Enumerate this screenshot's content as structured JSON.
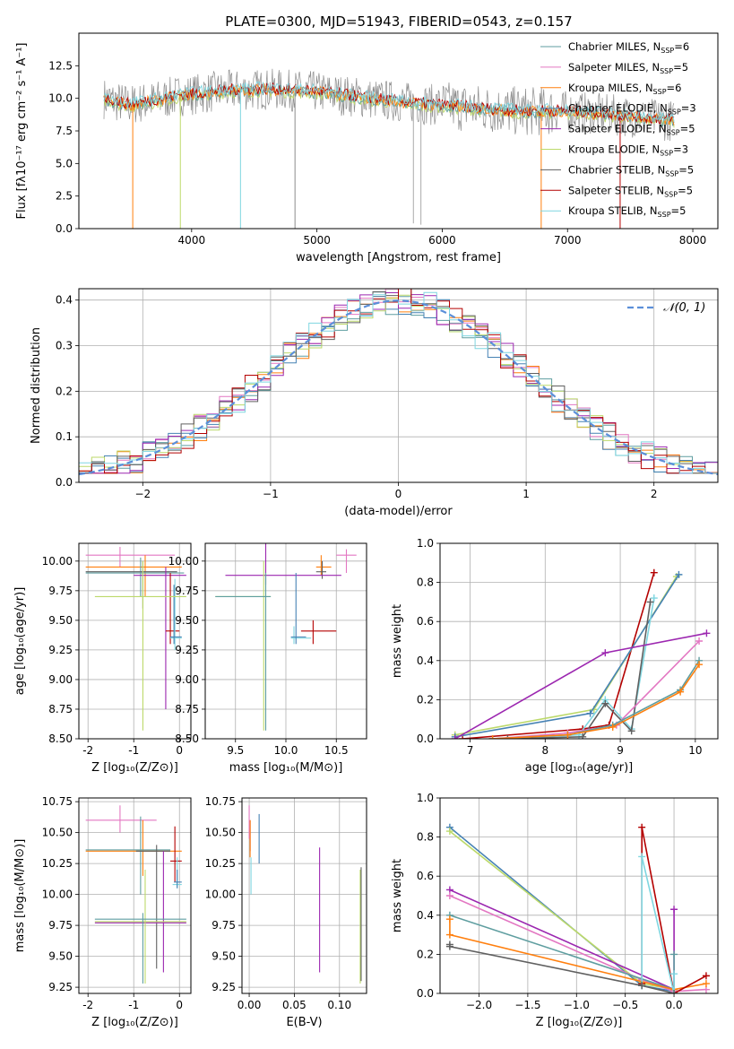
{
  "figure_title": "PLATE=0300, MJD=51943, FIBERID=0543, z=0.157",
  "colors": {
    "chabrier_miles": "#5f9ea0",
    "salpeter_miles": "#e377c2",
    "kroupa_miles": "#ff7f0e",
    "chabrier_elodie": "#4682b4",
    "salpeter_elodie": "#9c27b0",
    "kroupa_elodie": "#bcd96a",
    "chabrier_stelib": "#606060",
    "salpeter_stelib": "#b40000",
    "kroupa_stelib": "#7fd6e0",
    "gauss": "#5b8fd9",
    "grid": "#b0b0b0"
  },
  "chart_data": [
    {
      "id": "spectrum",
      "type": "line",
      "xlabel": "wavelength [Angstrom, rest frame]",
      "ylabel": "Flux [fλ10⁻¹⁷ erg cm⁻² s⁻¹ A⁻¹]",
      "xlim": [
        3100,
        8200
      ],
      "ylim": [
        0,
        15
      ],
      "xticks": [
        4000,
        5000,
        6000,
        7000,
        8000
      ],
      "yticks": [
        0.0,
        2.5,
        5.0,
        7.5,
        10.0,
        12.5
      ],
      "legend_position": "top-right",
      "legend": [
        {
          "base": "Chabrier MILES, N",
          "sub": "SSP",
          "tail": "=6",
          "color_key": "chabrier_miles"
        },
        {
          "base": "Salpeter MILES, N",
          "sub": "SSP",
          "tail": "=5",
          "color_key": "salpeter_miles"
        },
        {
          "base": "Kroupa MILES, N",
          "sub": "SSP",
          "tail": "=6",
          "color_key": "kroupa_miles"
        },
        {
          "base": "Chabrier ELODIE, N",
          "sub": "SSP",
          "tail": "=3",
          "color_key": "chabrier_elodie"
        },
        {
          "base": "Salpeter ELODIE, N",
          "sub": "SSP",
          "tail": "=5",
          "color_key": "salpeter_elodie"
        },
        {
          "base": "Kroupa ELODIE, N",
          "sub": "SSP",
          "tail": "=3",
          "color_key": "kroupa_elodie"
        },
        {
          "base": "Chabrier STELIB, N",
          "sub": "SSP",
          "tail": "=5",
          "color_key": "chabrier_stelib"
        },
        {
          "base": "Salpeter STELIB, N",
          "sub": "SSP",
          "tail": "=5",
          "color_key": "salpeter_stelib"
        },
        {
          "base": "Kroupa STELIB, N",
          "sub": "SSP",
          "tail": "=5",
          "color_key": "kroupa_stelib"
        }
      ],
      "continuum": [
        [
          3300,
          10.0
        ],
        [
          3500,
          9.5
        ],
        [
          3700,
          9.8
        ],
        [
          3900,
          10.2
        ],
        [
          4100,
          10.4
        ],
        [
          4300,
          10.6
        ],
        [
          4600,
          10.7
        ],
        [
          5000,
          10.5
        ],
        [
          5400,
          10.0
        ],
        [
          5800,
          9.6
        ],
        [
          6200,
          9.3
        ],
        [
          6600,
          9.0
        ],
        [
          7000,
          9.0
        ],
        [
          7400,
          8.7
        ],
        [
          7800,
          8.3
        ]
      ],
      "dips": [
        {
          "x": 3530,
          "y": 0.0
        },
        {
          "x": 3910,
          "y": 0.0
        },
        {
          "x": 4390,
          "y": 0.0
        },
        {
          "x": 4825,
          "y": 0.0
        },
        {
          "x": 5770,
          "y": 0.4
        },
        {
          "x": 5830,
          "y": 0.3
        },
        {
          "x": 6790,
          "y": 0.0
        },
        {
          "x": 7420,
          "y": 0.0
        }
      ]
    },
    {
      "id": "residuals",
      "type": "line",
      "xlabel": "(data-model)/error",
      "ylabel": "Normed distribution",
      "xlim": [
        -2.5,
        2.5
      ],
      "ylim": [
        0,
        0.425
      ],
      "xticks": [
        -2,
        -1,
        0,
        1,
        2
      ],
      "yticks": [
        0.0,
        0.1,
        0.2,
        0.3,
        0.4
      ],
      "gauss_label": "𝒩(0, 1)",
      "legend_position": "top-right"
    },
    {
      "id": "age_vs_Z",
      "type": "scatter",
      "xlabel": "Z [log₁₀(Z/Z⊙)]",
      "ylabel": "age  [log₁₀(age/yr)]",
      "xlim": [
        -2.2,
        0.25
      ],
      "ylim": [
        8.5,
        10.15
      ],
      "xticks": [
        -2,
        -1,
        0
      ],
      "yticks": [
        8.5,
        8.75,
        9.0,
        9.25,
        9.5,
        9.75,
        10.0
      ],
      "points": [
        {
          "c": "salpeter_miles",
          "x": -1.3,
          "y": 10.05,
          "xl": -2.05,
          "xh": -0.1,
          "yl": 9.95,
          "yh": 10.12
        },
        {
          "c": "kroupa_miles",
          "x": -0.75,
          "y": 9.95,
          "xl": -2.05,
          "xh": 0.05,
          "yl": 9.7,
          "yh": 10.05
        },
        {
          "c": "chabrier_miles",
          "x": -0.85,
          "y": 9.9,
          "xl": -2.05,
          "xh": 0.1,
          "yl": 9.7,
          "yh": 10.03
        },
        {
          "c": "chabrier_stelib",
          "x": -0.8,
          "y": 9.91,
          "xl": -2.05,
          "xh": -0.05,
          "yl": 9.6,
          "yh": 10.0
        },
        {
          "c": "salpeter_elodie",
          "x": -0.3,
          "y": 9.88,
          "xl": -1.0,
          "xh": 0.15,
          "yl": 8.75,
          "yh": 9.95
        },
        {
          "c": "salpeter_stelib",
          "x": -0.2,
          "y": 9.41,
          "xl": -0.3,
          "xh": 0.0,
          "yl": 9.3,
          "yh": 9.9
        },
        {
          "c": "kroupa_stelib",
          "x": -0.1,
          "y": 9.35,
          "xl": -0.2,
          "xh": 0.05,
          "yl": 9.25,
          "yh": 9.85
        },
        {
          "c": "chabrier_elodie",
          "x": -0.12,
          "y": 9.36,
          "xl": -0.2,
          "xh": 0.05,
          "yl": 9.3,
          "yh": 9.8
        },
        {
          "c": "kroupa_elodie",
          "x": -0.8,
          "y": 9.7,
          "xl": -1.85,
          "xh": 0.15,
          "yl": 8.57,
          "yh": 10.0
        }
      ]
    },
    {
      "id": "age_vs_mass",
      "type": "scatter",
      "xlabel": "mass [log₁₀(M/M⊙)]",
      "ylabel": "",
      "xlim": [
        9.2,
        10.8
      ],
      "ylim": [
        8.5,
        10.15
      ],
      "xticks": [
        9.5,
        10.0,
        10.5
      ],
      "yticks": [
        8.5,
        8.75,
        9.0,
        9.25,
        9.5,
        9.75,
        10.0
      ],
      "points": [
        {
          "c": "salpeter_miles",
          "x": 10.6,
          "y": 10.05,
          "xl": 10.5,
          "xh": 10.7,
          "yl": 9.9,
          "yh": 10.1
        },
        {
          "c": "kroupa_miles",
          "x": 10.35,
          "y": 9.95,
          "xl": 10.3,
          "xh": 10.45,
          "yl": 9.88,
          "yh": 10.05
        },
        {
          "c": "chabrier_stelib",
          "x": 10.36,
          "y": 9.91,
          "xl": 10.3,
          "xh": 10.4,
          "yl": 9.85,
          "yh": 10.0
        },
        {
          "c": "salpeter_elodie",
          "x": 9.8,
          "y": 9.88,
          "xl": 9.4,
          "xh": 10.55,
          "yl": 9.8,
          "yh": 10.15
        },
        {
          "c": "salpeter_stelib",
          "x": 10.27,
          "y": 9.41,
          "xl": 10.15,
          "xh": 10.5,
          "yl": 9.3,
          "yh": 9.5
        },
        {
          "c": "kroupa_stelib",
          "x": 10.08,
          "y": 9.35,
          "xl": 10.05,
          "xh": 10.25,
          "yl": 9.3,
          "yh": 9.45
        },
        {
          "c": "chabrier_elodie",
          "x": 10.1,
          "y": 9.36,
          "xl": 10.05,
          "xh": 10.2,
          "yl": 9.3,
          "yh": 9.9
        },
        {
          "c": "kroupa_elodie",
          "x": 9.78,
          "y": 9.7,
          "xl": 9.3,
          "xh": 9.85,
          "yl": 8.57,
          "yh": 10.0
        },
        {
          "c": "chabrier_miles",
          "x": 9.8,
          "y": 9.7,
          "xl": 9.3,
          "xh": 9.85,
          "yl": 8.57,
          "yh": 9.9
        }
      ]
    },
    {
      "id": "weight_vs_age",
      "type": "line",
      "xlabel": "age  [log₁₀(age/yr)]",
      "ylabel": "mass weight",
      "xlim": [
        6.6,
        10.3
      ],
      "ylim": [
        0,
        1
      ],
      "xticks": [
        7,
        8,
        9,
        10
      ],
      "yticks": [
        0.0,
        0.2,
        0.4,
        0.6,
        0.8,
        1.0
      ],
      "series": [
        {
          "c": "salpeter_stelib",
          "x": [
            6.9,
            8.5,
            8.85,
            9.45
          ],
          "y": [
            0.0,
            0.05,
            0.07,
            0.85
          ]
        },
        {
          "c": "kroupa_elodie",
          "x": [
            6.8,
            8.65,
            9.75
          ],
          "y": [
            0.02,
            0.15,
            0.83
          ]
        },
        {
          "c": "chabrier_elodie",
          "x": [
            6.8,
            8.6,
            9.78
          ],
          "y": [
            0.01,
            0.13,
            0.84
          ]
        },
        {
          "c": "kroupa_stelib",
          "x": [
            7.5,
            8.45,
            8.8,
            9.15,
            9.45
          ],
          "y": [
            0.0,
            0.02,
            0.2,
            0.05,
            0.72
          ]
        },
        {
          "c": "chabrier_stelib",
          "x": [
            7.5,
            8.5,
            8.8,
            9.15,
            9.4
          ],
          "y": [
            0.0,
            0.01,
            0.18,
            0.04,
            0.7
          ]
        },
        {
          "c": "salpeter_elodie",
          "x": [
            6.8,
            8.8,
            10.15
          ],
          "y": [
            0.0,
            0.44,
            0.54
          ]
        },
        {
          "c": "salpeter_miles",
          "x": [
            7.3,
            8.3,
            8.95,
            10.05
          ],
          "y": [
            0.0,
            0.03,
            0.07,
            0.5
          ]
        },
        {
          "c": "chabrier_miles",
          "x": [
            7.3,
            8.3,
            8.9,
            9.8,
            10.05
          ],
          "y": [
            0.0,
            0.02,
            0.07,
            0.25,
            0.4
          ]
        },
        {
          "c": "kroupa_miles",
          "x": [
            7.3,
            8.3,
            8.9,
            9.8,
            10.05
          ],
          "y": [
            0.0,
            0.02,
            0.06,
            0.24,
            0.38
          ]
        }
      ]
    },
    {
      "id": "mass_vs_Z",
      "type": "scatter",
      "xlabel": "Z [log₁₀(Z/Z⊙)]",
      "ylabel": "mass [log₁₀(M/M⊙)]",
      "xlim": [
        -2.2,
        0.25
      ],
      "ylim": [
        9.2,
        10.78
      ],
      "xticks": [
        -2,
        -1,
        0
      ],
      "yticks": [
        9.25,
        9.5,
        9.75,
        10.0,
        10.25,
        10.5,
        10.75
      ],
      "points": [
        {
          "c": "salpeter_miles",
          "x": -1.3,
          "y": 10.6,
          "xl": -2.05,
          "xh": -0.5,
          "yl": 10.5,
          "yh": 10.72
        },
        {
          "c": "kroupa_miles",
          "x": -0.8,
          "y": 10.35,
          "xl": -2.05,
          "xh": 0.05,
          "yl": 10.15,
          "yh": 10.6
        },
        {
          "c": "chabrier_miles",
          "x": -0.85,
          "y": 10.36,
          "xl": -2.05,
          "xh": -0.2,
          "yl": 10.0,
          "yh": 10.63
        },
        {
          "c": "chabrier_stelib",
          "x": -0.5,
          "y": 10.35,
          "xl": -0.95,
          "xh": -0.2,
          "yl": 9.4,
          "yh": 10.4
        },
        {
          "c": "salpeter_stelib",
          "x": -0.1,
          "y": 10.27,
          "xl": -0.2,
          "xh": 0.05,
          "yl": 10.1,
          "yh": 10.55
        },
        {
          "c": "kroupa_stelib",
          "x": -0.05,
          "y": 10.08,
          "xl": -0.15,
          "xh": 0.05,
          "yl": 10.05,
          "yh": 10.3
        },
        {
          "c": "chabrier_elodie",
          "x": -0.05,
          "y": 10.1,
          "xl": -0.12,
          "xh": 0.05,
          "yl": 10.05,
          "yh": 10.2
        },
        {
          "c": "salpeter_elodie",
          "x": -0.35,
          "y": 9.77,
          "xl": -1.85,
          "xh": 0.15,
          "yl": 9.37,
          "yh": 10.35
        },
        {
          "c": "kroupa_elodie",
          "x": -0.75,
          "y": 9.78,
          "xl": -1.85,
          "xh": 0.15,
          "yl": 9.28,
          "yh": 10.2
        },
        {
          "c": "chabrier_miles",
          "x": -0.8,
          "y": 9.8,
          "xl": -1.85,
          "xh": 0.15,
          "yl": 9.28,
          "yh": 9.85
        }
      ]
    },
    {
      "id": "mass_vs_ebv",
      "type": "scatter",
      "xlabel": "E(B-V)",
      "ylabel": "",
      "xlim": [
        -0.008,
        0.13
      ],
      "ylim": [
        9.2,
        10.78
      ],
      "xticks": [
        0.0,
        0.05,
        0.1
      ],
      "yticks": [
        9.25,
        9.5,
        9.75,
        10.0,
        10.25,
        10.5,
        10.75
      ],
      "points": [
        {
          "c": "chabrier_elodie",
          "x": 0.011,
          "y": 10.4,
          "yl": 10.25,
          "yh": 10.65
        },
        {
          "c": "salpeter_stelib",
          "x": 0.001,
          "y": 10.45,
          "yl": 10.35,
          "yh": 10.6
        },
        {
          "c": "kroupa_miles",
          "x": 0.001,
          "y": 10.5,
          "yl": 10.3,
          "yh": 10.6
        },
        {
          "c": "salpeter_miles",
          "x": 0.0,
          "y": 10.6,
          "yl": 10.45,
          "yh": 10.72
        },
        {
          "c": "kroupa_stelib",
          "x": 0.002,
          "y": 10.1,
          "yl": 10.0,
          "yh": 10.3
        },
        {
          "c": "salpeter_elodie",
          "x": 0.078,
          "y": 9.8,
          "yl": 9.37,
          "yh": 10.38
        },
        {
          "c": "kroupa_elodie",
          "x": 0.123,
          "y": 9.7,
          "yl": 9.28,
          "yh": 10.2
        },
        {
          "c": "chabrier_stelib",
          "x": 0.124,
          "y": 9.8,
          "yl": 9.3,
          "yh": 10.22
        }
      ]
    },
    {
      "id": "weight_vs_Z",
      "type": "line",
      "xlabel": "Z [log₁₀(Z/Z⊙)]",
      "ylabel": "mass weight",
      "xlim": [
        -2.4,
        0.45
      ],
      "ylim": [
        0,
        1
      ],
      "xticks": [
        -2.0,
        -1.5,
        -1.0,
        -0.5,
        0.0
      ],
      "yticks": [
        0.0,
        0.2,
        0.4,
        0.6,
        0.8,
        1.0
      ],
      "series": [
        {
          "c": "chabrier_elodie",
          "x": [
            -2.3,
            -0.33,
            0.0
          ],
          "y": [
            0.85,
            0.04,
            0.01
          ]
        },
        {
          "c": "kroupa_elodie",
          "x": [
            -2.3,
            -0.33,
            0.0
          ],
          "y": [
            0.83,
            0.05,
            0.02
          ]
        },
        {
          "c": "salpeter_elodie",
          "x": [
            -2.3,
            0.0,
            0.0
          ],
          "y": [
            0.53,
            0.02,
            0.43
          ]
        },
        {
          "c": "salpeter_miles",
          "x": [
            -2.3,
            -0.33,
            0.0,
            0.33
          ],
          "y": [
            0.5,
            0.07,
            0.01,
            0.02
          ]
        },
        {
          "c": "chabrier_miles",
          "x": [
            -2.3,
            0.0,
            0.0
          ],
          "y": [
            0.4,
            0.02,
            0.2
          ]
        },
        {
          "c": "kroupa_miles",
          "x": [
            -2.3,
            -2.3,
            0.0,
            0.33
          ],
          "y": [
            0.38,
            0.3,
            0.02,
            0.05
          ]
        },
        {
          "c": "salpeter_stelib",
          "x": [
            -0.33,
            -0.33,
            0.0,
            0.33
          ],
          "y": [
            0.05,
            0.85,
            0.0,
            0.09
          ]
        },
        {
          "c": "kroupa_stelib",
          "x": [
            -0.33,
            -0.33,
            0.0,
            0.0
          ],
          "y": [
            0.04,
            0.7,
            0.0,
            0.1
          ]
        },
        {
          "c": "chabrier_stelib",
          "x": [
            -2.3,
            -2.3,
            -0.33,
            0.0
          ],
          "y": [
            0.25,
            0.24,
            0.04,
            0.0
          ]
        }
      ]
    }
  ]
}
